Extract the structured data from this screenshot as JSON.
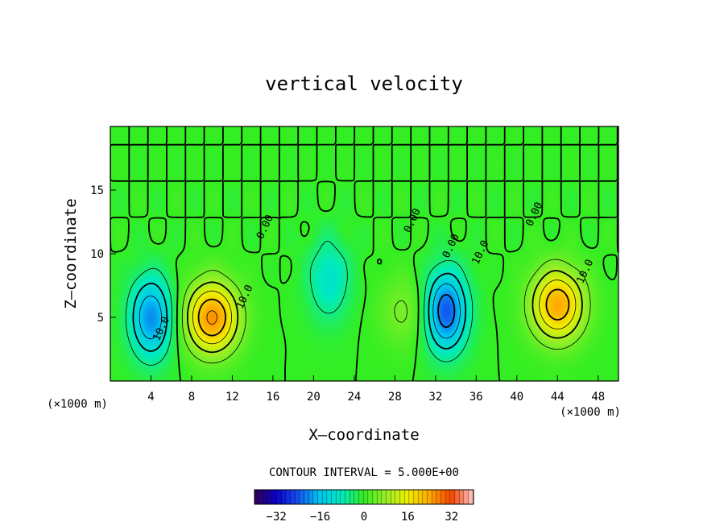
{
  "chart_data": {
    "type": "heatmap",
    "title": "vertical velocity",
    "xlabel": "X–coordinate",
    "ylabel": "Z–coordinate",
    "x_unit_label": "(×1000 m)",
    "x_unit_label_right": "(×1000 m)",
    "xlim": [
      0,
      50
    ],
    "ylim": [
      0,
      20
    ],
    "xticks": [
      4,
      8,
      12,
      16,
      20,
      24,
      28,
      32,
      36,
      40,
      44,
      48
    ],
    "yticks": [
      5,
      10,
      15
    ],
    "contour_interval_label": "CONTOUR INTERVAL = 5.000E+00",
    "contour_interval": 5.0,
    "colorbar": {
      "range": [
        -40,
        40
      ],
      "ticks": [
        -32,
        -16,
        0,
        16,
        32
      ],
      "tick_labels": [
        "−32",
        "−16",
        "0",
        "16",
        "32"
      ]
    },
    "contour_labels": [
      {
        "text": "10.0",
        "x": 5.3,
        "z": 4.0
      },
      {
        "text": "10.0",
        "x": 13.5,
        "z": 6.5
      },
      {
        "text": "0.00",
        "x": 15.5,
        "z": 12.0
      },
      {
        "text": "0.00",
        "x": 30.0,
        "z": 12.5
      },
      {
        "text": "0.00",
        "x": 33.8,
        "z": 10.5
      },
      {
        "text": "10.0",
        "x": 36.7,
        "z": 10.0
      },
      {
        "text": "0.00",
        "x": 42.0,
        "z": 13.0
      },
      {
        "text": "10.0",
        "x": 47.0,
        "z": 8.5
      }
    ],
    "features": [
      {
        "kind": "updraft",
        "x": 10.0,
        "z": 5.0,
        "peak": 26
      },
      {
        "kind": "downdraft",
        "x": 4.0,
        "z": 5.0,
        "peak": -20
      },
      {
        "kind": "downdraft",
        "x": 21.5,
        "z": 8.0,
        "peak": -10
      },
      {
        "kind": "downdraft",
        "x": 33.0,
        "z": 5.5,
        "peak": -24
      },
      {
        "kind": "updraft",
        "x": 44.0,
        "z": 6.0,
        "peak": 24
      },
      {
        "kind": "updraft",
        "x": 29.0,
        "z": 5.5,
        "peak": 6
      }
    ]
  },
  "colors": {
    "background": "#ffffff",
    "field_zero": "#33ee22",
    "contour": "#000000"
  }
}
